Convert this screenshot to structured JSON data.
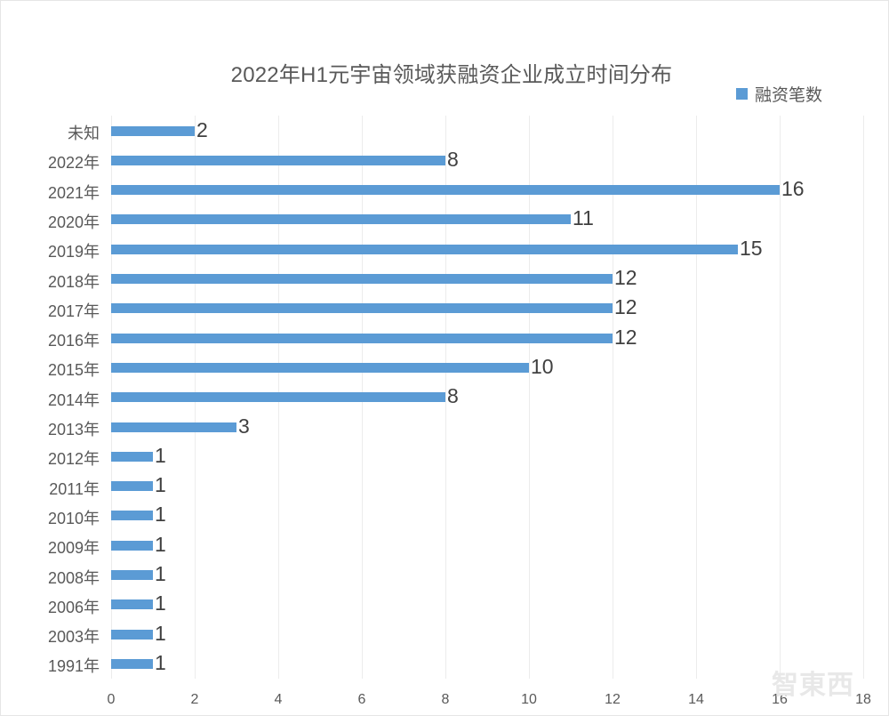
{
  "chart_data": {
    "type": "bar",
    "orientation": "horizontal",
    "title": "2022年H1元宇宙领域获融资企业成立时间分布",
    "xlabel": "",
    "ylabel": "",
    "xlim": [
      0,
      18
    ],
    "x_ticks": [
      "0",
      "2",
      "4",
      "6",
      "8",
      "10",
      "12",
      "14",
      "16",
      "18"
    ],
    "grid": true,
    "legend_position": "top-right",
    "categories": [
      "未知",
      "2022年",
      "2021年",
      "2020年",
      "2019年",
      "2018年",
      "2017年",
      "2016年",
      "2015年",
      "2014年",
      "2013年",
      "2012年",
      "2011年",
      "2010年",
      "2009年",
      "2008年",
      "2006年",
      "2003年",
      "1991年"
    ],
    "series": [
      {
        "name": "融资笔数",
        "color": "#5b9bd5",
        "values": [
          2,
          8,
          16,
          11,
          15,
          12,
          12,
          12,
          10,
          8,
          3,
          1,
          1,
          1,
          1,
          1,
          1,
          1,
          1
        ]
      }
    ]
  },
  "legend": {
    "label": "融资笔数",
    "color": "#5b9bd5"
  },
  "watermark": "智東西"
}
